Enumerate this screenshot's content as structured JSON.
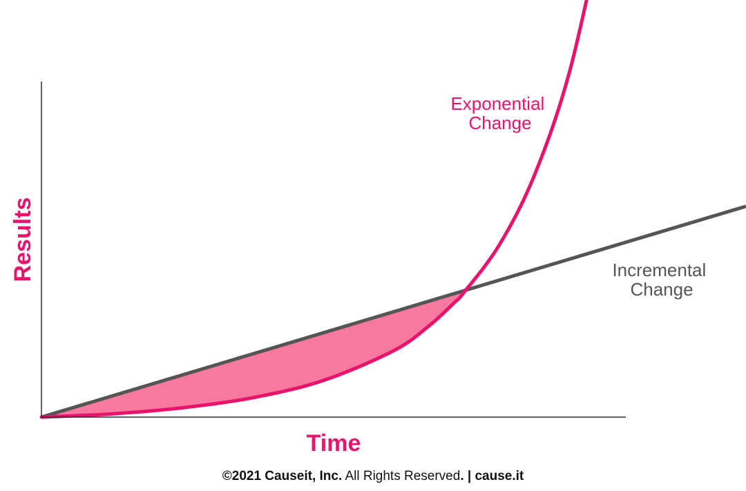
{
  "colors": {
    "exponential": "#e8136b",
    "incremental": "#555555",
    "gap_fill": "#f7799f",
    "axis": "#2b2b2b"
  },
  "chart_data": {
    "type": "line",
    "xlabel": "Time",
    "ylabel": "Results",
    "grid": false,
    "shaded_region": "between Incremental Change and Exponential Change, from origin to crossover",
    "series": [
      {
        "name": "Exponential Change",
        "label_lines": [
          "Exponential",
          "Change"
        ],
        "label_color": "#e8136b",
        "x": [
          0,
          100,
          200,
          300,
          400,
          500,
          550,
          585,
          600,
          650,
          700,
          750,
          800
        ],
        "y": [
          0,
          9,
          26,
          54,
          102,
          185,
          254,
          317,
          348,
          480,
          675,
          965,
          1400
        ]
      },
      {
        "name": "Incremental Change",
        "label_lines": [
          "Incremental",
          "Change"
        ],
        "label_color": "#555555",
        "x": [
          0,
          1000
        ],
        "y": [
          0,
          587
        ]
      }
    ]
  },
  "footer": {
    "copyright_bold": "©2021 Causeit, Inc.",
    "rights": " All Rights Reserved",
    "separator": ". | ",
    "site": "cause.it"
  }
}
